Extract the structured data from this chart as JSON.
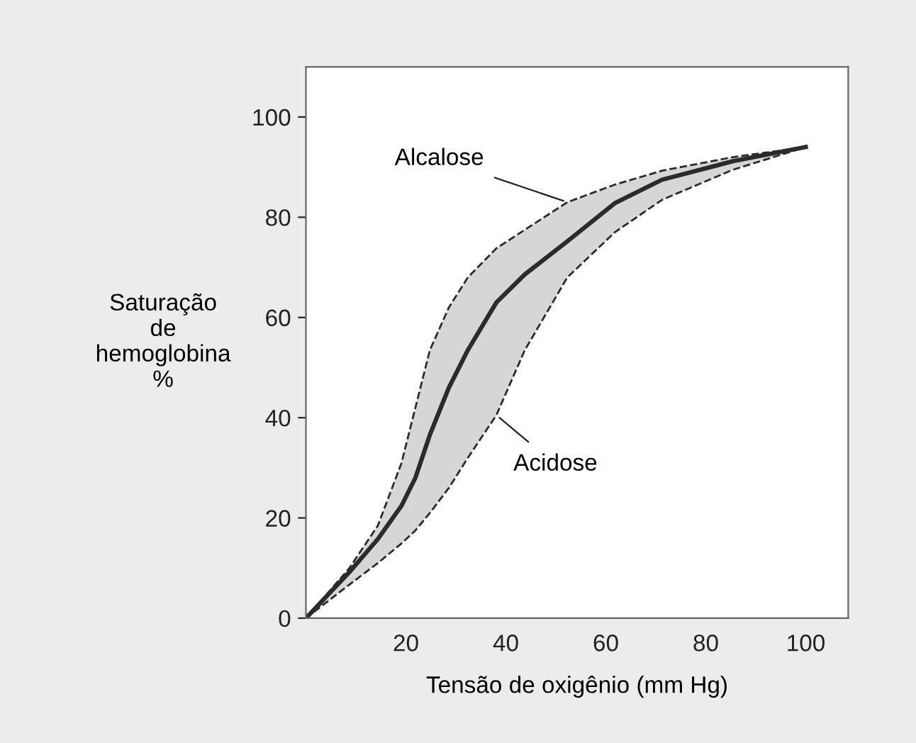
{
  "chart_data": {
    "type": "line",
    "xlabel": "Tensão de oxigênio (mm Hg)",
    "ylabel": "Saturação\nde\nhemoglobina\n%",
    "x": [
      0,
      8.7,
      14.4,
      19.1,
      21.9,
      24.8,
      28.6,
      32.4,
      38.1,
      43.8,
      52.3,
      61.8,
      71.3,
      85.5,
      100
    ],
    "series": [
      {
        "color": "#2b2b2b",
        "values": [
          0,
          9.2,
          15.8,
          22.4,
          28,
          36.6,
          46,
          53.5,
          63,
          68.6,
          75.2,
          82.8,
          87.5,
          91.2,
          94
        ],
        "upper": [
          0,
          10,
          18.5,
          30.9,
          42,
          53.5,
          62,
          68,
          73.8,
          77.5,
          83,
          86.5,
          89.3,
          92,
          94
        ],
        "lower": [
          0,
          6.7,
          11,
          14.9,
          17.5,
          21,
          26,
          32,
          40.5,
          53.5,
          68,
          77,
          83.5,
          89.5,
          94
        ]
      }
    ],
    "annotations": [
      {
        "text": "Alcalose",
        "x": 52.3,
        "y": 83
      },
      {
        "text": "Acidose",
        "x": 38.1,
        "y": 40.5
      }
    ],
    "xlim": [
      0,
      108.5
    ],
    "ylim": [
      0,
      110
    ],
    "xticks": [
      20,
      40,
      60,
      80,
      100
    ],
    "yticks": [
      0,
      20,
      40,
      60,
      80,
      100
    ],
    "grid": false,
    "legend": false,
    "marker": "none",
    "line_style": "solid"
  }
}
